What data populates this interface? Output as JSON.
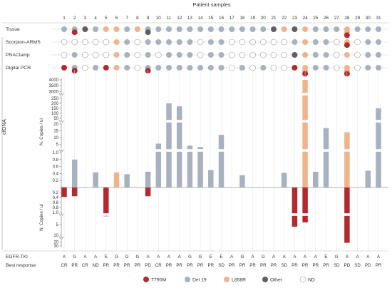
{
  "chart_data": {
    "type": "bar",
    "title": "Patient samples",
    "patients": [
      "1",
      "2",
      "3",
      "4",
      "5",
      "6",
      "7",
      "8",
      "9",
      "10",
      "11",
      "12",
      "13",
      "14",
      "15",
      "16",
      "17",
      "18",
      "19",
      "20",
      "21",
      "22",
      "23",
      "24",
      "25",
      "26",
      "27",
      "28",
      "29",
      "30",
      "31"
    ],
    "colors": {
      "T790M": "#b22a2e",
      "Del 19": "#a7b1c0",
      "L858R": "#efb48e",
      "Other": "#5f5f5f",
      "ND": "#ffffff",
      "axis": "#888888",
      "text": "#333333"
    },
    "detection_rows": [
      {
        "label": "Tissue",
        "stacks": [
          [
            "Del 19"
          ],
          [
            "Del 19",
            "T790M"
          ],
          [
            "Other"
          ],
          [
            "Del 19"
          ],
          [
            "L858R"
          ],
          [
            "L858R"
          ],
          [
            "Del 19"
          ],
          [
            "L858R"
          ],
          [
            "Del 19",
            "Other"
          ],
          [
            "Del 19"
          ],
          [
            "Del 19"
          ],
          [
            "Del 19"
          ],
          [
            "Del 19"
          ],
          [
            "Del 19"
          ],
          [
            "Del 19"
          ],
          [
            "Del 19"
          ],
          [
            "Del 19"
          ],
          [
            "Del 19"
          ],
          [
            "Del 19"
          ],
          [
            "Del 19"
          ],
          [
            "Other"
          ],
          [
            "L858R"
          ],
          [
            "Other"
          ],
          [
            "L858R"
          ],
          [
            "Del 19"
          ],
          [
            "Del 19"
          ],
          [
            "Del 19"
          ],
          [
            "L858R",
            "L858R",
            "T790M"
          ],
          [
            "Del 19"
          ],
          [
            "Del 19"
          ],
          [
            "Del 19"
          ]
        ]
      },
      {
        "label": "Scorpion-ARMS",
        "stacks": [
          [
            "ND"
          ],
          [
            "ND"
          ],
          [
            "ND"
          ],
          [
            "ND"
          ],
          [
            "ND"
          ],
          [
            "L858R"
          ],
          [
            "Del 19"
          ],
          [
            "ND"
          ],
          [
            "Del 19"
          ],
          [
            "Del 19"
          ],
          [
            "Del 19"
          ],
          [
            "Del 19"
          ],
          [
            "Del 19"
          ],
          [
            "ND"
          ],
          [
            "Del 19"
          ],
          [
            "Del 19"
          ],
          [
            "ND"
          ],
          [
            "ND"
          ],
          [
            "ND"
          ],
          [
            "ND"
          ],
          [
            "ND"
          ],
          [
            "ND"
          ],
          [
            "Del 19"
          ],
          [
            "L858R"
          ],
          [
            "Del 19"
          ],
          [
            "Del 19"
          ],
          [
            "ND"
          ],
          [
            "L858R",
            "T790M"
          ],
          [
            "ND"
          ],
          [
            "Del 19"
          ],
          [
            "Del 19"
          ]
        ]
      },
      {
        "label": "PNAClamp",
        "stacks": [
          [
            "ND"
          ],
          [
            "Del 19"
          ],
          [
            "ND"
          ],
          [
            "ND"
          ],
          [
            "ND"
          ],
          [
            "L858R"
          ],
          [
            "Del 19"
          ],
          [
            "ND"
          ],
          [
            "Del 19"
          ],
          [
            "ND"
          ],
          [
            "Del 19"
          ],
          [
            "Del 19"
          ],
          [
            "Del 19"
          ],
          [
            "ND"
          ],
          [
            "Del 19"
          ],
          [
            "Del 19"
          ],
          [
            "ND"
          ],
          [
            "ND"
          ],
          [
            "ND"
          ],
          [
            "ND"
          ],
          [
            "ND"
          ],
          [
            "ND"
          ],
          [
            "Other"
          ],
          [
            "L858R"
          ],
          [
            "Del 19"
          ],
          [
            "Del 19"
          ],
          [
            "ND"
          ],
          [
            "L858R"
          ],
          [
            "ND"
          ],
          [
            "Del 19"
          ],
          [
            "Del 19"
          ]
        ]
      },
      {
        "label": "Digital PCR",
        "stacks": [
          [
            "T790M"
          ],
          [
            "Del 19",
            "T790M"
          ],
          [
            "ND"
          ],
          [
            "Del 19"
          ],
          [
            "T790M"
          ],
          [
            "L858R"
          ],
          [
            "Del 19"
          ],
          [
            "ND"
          ],
          [
            "Del 19",
            "T790M"
          ],
          [
            "Del 19"
          ],
          [
            "Del 19"
          ],
          [
            "Del 19"
          ],
          [
            "Del 19"
          ],
          [
            "Del 19"
          ],
          [
            "Del 19"
          ],
          [
            "Del 19"
          ],
          [
            "ND"
          ],
          [
            "Del 19"
          ],
          [
            "ND"
          ],
          [
            "Del 19"
          ],
          [
            "ND"
          ],
          [
            "ND"
          ],
          [
            "T790M"
          ],
          [
            "L858R",
            "L858R",
            "T790M"
          ],
          [
            "Del 19"
          ],
          [
            "Del 19"
          ],
          [
            "ND"
          ],
          [
            "L858R",
            "L858R",
            "T790M"
          ],
          [
            "ND"
          ],
          [
            "Del 19"
          ],
          [
            "Del 19"
          ]
        ]
      }
    ],
    "cfDNA_label": "cfDNA",
    "y_label": "N. Copies / ul",
    "upper_ticks": [
      {
        "group": "hi",
        "ticks": [
          "4000",
          "3500",
          "3000"
        ]
      },
      {
        "group": "mid",
        "ticks": [
          "250",
          "200",
          "150",
          "100",
          "50"
        ]
      },
      {
        "group": "low",
        "ticks": [
          "20",
          "15",
          "10",
          "5"
        ]
      },
      {
        "group": "frac",
        "ticks": [
          "1.0",
          "0.8",
          "0.6",
          "0.4",
          "0.2"
        ]
      }
    ],
    "lower_ticks": [
      {
        "group": "frac",
        "ticks": [
          "0.2",
          "0.4",
          "0.6",
          "0.8",
          "1.0"
        ]
      },
      {
        "group": "low",
        "ticks": [
          "5",
          "10"
        ]
      },
      {
        "group": "mid",
        "ticks": [
          "20",
          "30"
        ]
      }
    ],
    "bars_positive": [
      {
        "patient": "2",
        "mutation": "Del 19",
        "value": 0.8
      },
      {
        "patient": "4",
        "mutation": "Del 19",
        "value": 0.43
      },
      {
        "patient": "6",
        "mutation": "L858R",
        "value": 0.43
      },
      {
        "patient": "7",
        "mutation": "Del 19",
        "value": 0.38
      },
      {
        "patient": "9",
        "mutation": "Del 19",
        "value": 0.45
      },
      {
        "patient": "10",
        "mutation": "Del 19",
        "value": 5.5
      },
      {
        "patient": "11",
        "mutation": "Del 19",
        "value": 200
      },
      {
        "patient": "12",
        "mutation": "Del 19",
        "value": 170
      },
      {
        "patient": "13",
        "mutation": "Del 19",
        "value": 4
      },
      {
        "patient": "14",
        "mutation": "Del 19",
        "value": 3
      },
      {
        "patient": "15",
        "mutation": "Del 19",
        "value": 0.5
      },
      {
        "patient": "16",
        "mutation": "Del 19",
        "value": 12
      },
      {
        "patient": "18",
        "mutation": "Del 19",
        "value": 0.35
      },
      {
        "patient": "22",
        "mutation": "Del 19",
        "value": 0.42
      },
      {
        "patient": "24",
        "mutation": "L858R",
        "value": 4000
      },
      {
        "patient": "25",
        "mutation": "Del 19",
        "value": 0.45
      },
      {
        "patient": "26",
        "mutation": "Del 19",
        "value": 17
      },
      {
        "patient": "28",
        "mutation": "L858R",
        "value": 14
      },
      {
        "patient": "30",
        "mutation": "Del 19",
        "value": 0.48
      },
      {
        "patient": "31",
        "mutation": "Del 19",
        "value": 150
      }
    ],
    "bars_negative": [
      {
        "patient": "1",
        "mutation": "T790M",
        "value": 0.38
      },
      {
        "patient": "2",
        "mutation": "T790M",
        "value": 0.35
      },
      {
        "patient": "5",
        "mutation": "T790M",
        "value": 1.1
      },
      {
        "patient": "9",
        "mutation": "T790M",
        "value": 0.35
      },
      {
        "patient": "23",
        "mutation": "T790M",
        "value": 6
      },
      {
        "patient": "24",
        "mutation": "T790M",
        "value": 4
      },
      {
        "patient": "28",
        "mutation": "T790M",
        "value": 22
      }
    ],
    "footer_rows": [
      {
        "label": "EGFR-TKI",
        "values": [
          "A",
          "G",
          "A",
          "A",
          "E",
          "G",
          "G",
          "G",
          "A",
          "A",
          "A",
          "A",
          "G",
          "G",
          "E",
          "E",
          "A",
          "G",
          "A",
          "G",
          "A",
          "A",
          "A",
          "A",
          "A",
          "E",
          "G",
          "A",
          "A",
          "A",
          "A"
        ]
      },
      {
        "label": "Best response",
        "values": [
          "CR",
          "PR",
          "CR",
          "ND",
          "PR",
          "PR",
          "PR",
          "PR",
          "PD",
          "CR",
          "PR",
          "PR",
          "PR",
          "PR",
          "PR",
          "SD",
          "PR",
          "PR",
          "PR",
          "PR",
          "PR",
          "SD",
          "PR",
          "PR",
          "PR",
          "PR",
          "SD",
          "PD",
          "SD",
          "PD",
          "PR"
        ]
      }
    ],
    "legend": [
      {
        "label": "T790M",
        "key": "T790M"
      },
      {
        "label": "Del 19",
        "key": "Del 19"
      },
      {
        "label": "L858R",
        "key": "L858R"
      },
      {
        "label": "Other",
        "key": "Other"
      },
      {
        "label": "ND",
        "key": "ND"
      }
    ]
  }
}
